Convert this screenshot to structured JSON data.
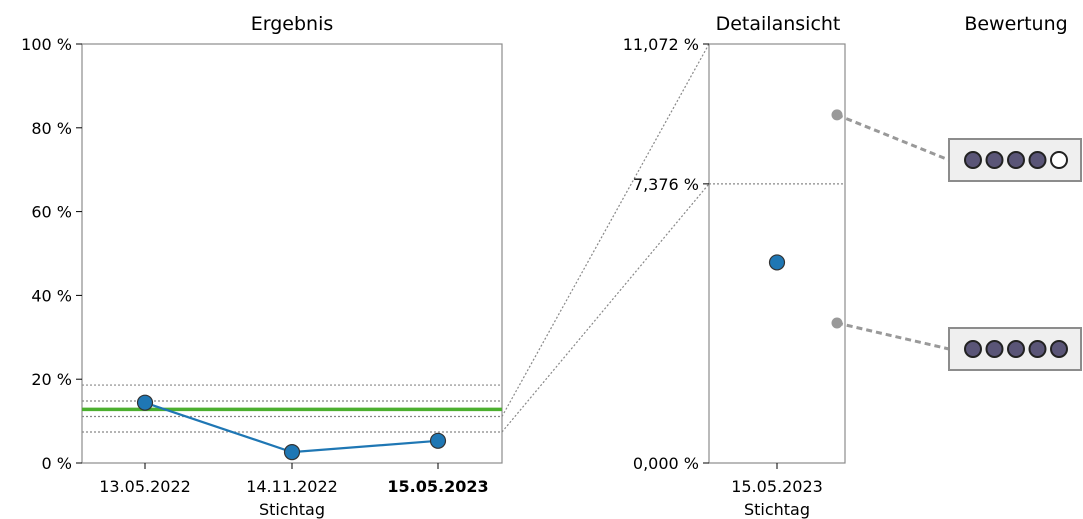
{
  "chart_data": [
    {
      "type": "line",
      "title": "Ergebnis",
      "xlabel": "Stichtag",
      "ylabel": "",
      "categories": [
        "13.05.2022",
        "14.11.2022",
        "15.05.2023"
      ],
      "highlight_category": "15.05.2023",
      "ylim": [
        0,
        100
      ],
      "yticks": [
        0,
        20,
        40,
        60,
        80,
        100
      ],
      "ytick_labels": [
        "0 %",
        "20 %",
        "40 %",
        "60 %",
        "80 %",
        "100 %"
      ],
      "series": [
        {
          "values": [
            14.4,
            2.6,
            5.3
          ],
          "color": "#1f77b4"
        }
      ],
      "reference_line": {
        "value": 12.8,
        "color": "#4caf2f"
      },
      "band_lines": [
        18.6,
        14.8,
        11.1,
        7.4
      ],
      "detail_range": [
        7.4,
        11.1
      ]
    },
    {
      "type": "scatter",
      "title": "Detailansicht",
      "xlabel": "Stichtag",
      "categories": [
        "15.05.2023"
      ],
      "ylim": [
        0,
        11.072
      ],
      "ytick_labels": [
        "0,000 %",
        "7,376 %",
        "11,072 %"
      ],
      "yticks": [
        0,
        7.376,
        11.072
      ],
      "values": [
        5.3
      ],
      "reference_line": 7.376,
      "color": "#1f77b4"
    },
    {
      "type": "table",
      "title": "Bewertung",
      "ratings": [
        {
          "level_y": 9.2,
          "filled": 4,
          "total": 5
        },
        {
          "level_y": 3.7,
          "filled": 5,
          "total": 5
        }
      ],
      "filled_color": "#5a5577",
      "empty_color": "#ffffff"
    }
  ]
}
